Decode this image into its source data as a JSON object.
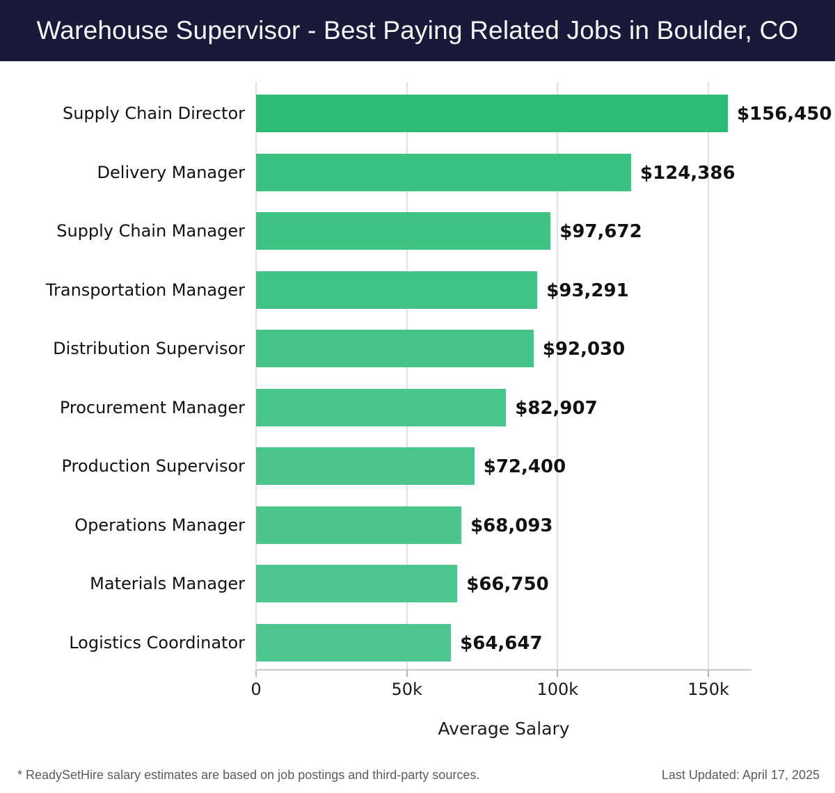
{
  "header": {
    "title": "Warehouse Supervisor - Best Paying Related Jobs in Boulder, CO",
    "bg_color": "#191a3a",
    "text_color": "#f7f8fc"
  },
  "chart_data": {
    "type": "bar",
    "orientation": "horizontal",
    "title": "Warehouse Supervisor - Best Paying Related Jobs in Boulder, CO",
    "xlabel": "Average Salary",
    "ylabel": "",
    "categories": [
      "Supply Chain Director",
      "Delivery Manager",
      "Supply Chain Manager",
      "Transportation Manager",
      "Distribution Supervisor",
      "Procurement Manager",
      "Production Supervisor",
      "Operations Manager",
      "Materials Manager",
      "Logistics Coordinator"
    ],
    "values": [
      156450,
      124386,
      97672,
      93291,
      92030,
      82907,
      72400,
      68093,
      66750,
      64647
    ],
    "value_labels": [
      "$156,450",
      "$124,386",
      "$97,672",
      "$93,291",
      "$92,030",
      "$82,907",
      "$72,400",
      "$68,093",
      "$66,750",
      "$64,647"
    ],
    "bar_colors": [
      "#2bbb75",
      "#3bc282",
      "#3ec384",
      "#41c386",
      "#45c489",
      "#47c58a",
      "#49c58c",
      "#4ac68d",
      "#4bc68e",
      "#4dc78f"
    ],
    "xlim": [
      0,
      164300
    ],
    "x_ticks": [
      {
        "value": 0,
        "label": "0"
      },
      {
        "value": 50000,
        "label": "50k"
      },
      {
        "value": 100000,
        "label": "100k"
      },
      {
        "value": 150000,
        "label": "150k"
      }
    ],
    "grid": true,
    "gridline_color": "#e0e0e0",
    "axis_line_color": "#c9c9c9",
    "tick_color": "#b5b5b5",
    "legend": "none"
  },
  "footer": {
    "source_note": "* ReadySetHire salary estimates are based on job postings and third-party sources.",
    "last_updated": "Last Updated: April 17, 2025"
  }
}
